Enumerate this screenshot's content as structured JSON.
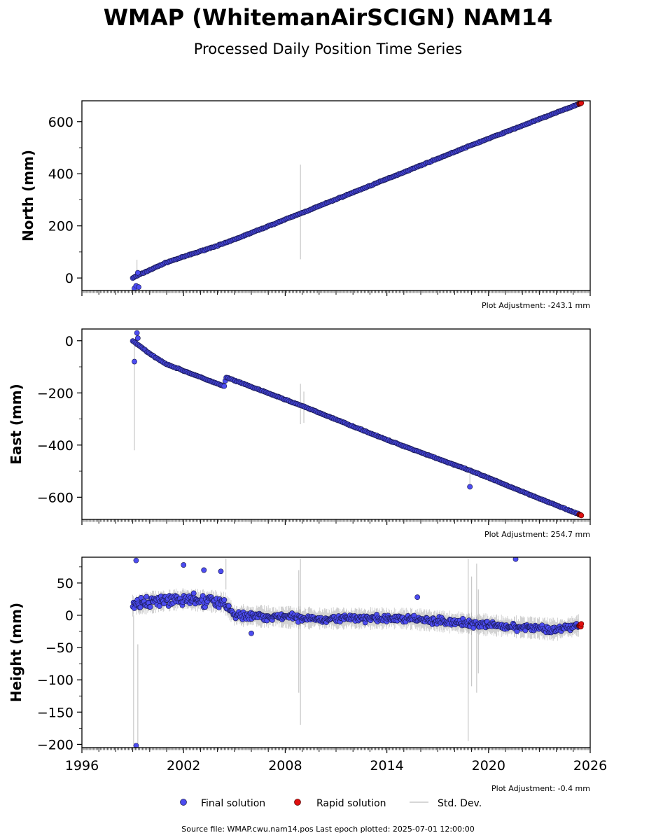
{
  "header": {
    "title": "WMAP (WhitemanAirSCIGN) NAM14",
    "subtitle": "Processed Daily Position Time Series"
  },
  "legend": {
    "final_label": "Final solution",
    "rapid_label": "Rapid solution",
    "std_label": "Std. Dev."
  },
  "footer": {
    "source": "Source file: WMAP.cwu.nam14.pos  Last epoch plotted: 2025-07-01 12:00:00"
  },
  "colors": {
    "final": "#4c4cf0",
    "rapid": "#e01010",
    "std_dev": "#c8c8c8"
  },
  "chart_data": [
    {
      "type": "scatter",
      "ylabel": "North (mm)",
      "adjustment": "Plot Adjustment: -243.1 mm",
      "xlim": [
        1996,
        2026
      ],
      "ylim": [
        -48,
        680
      ],
      "yticks": [
        0,
        200,
        400,
        600
      ],
      "xticks": [
        1996,
        2002,
        2008,
        2014,
        2020,
        2026
      ],
      "show_xtick_labels": false,
      "trend": [
        [
          1999.0,
          0
        ],
        [
          1999.3,
          10
        ],
        [
          2001.0,
          60
        ],
        [
          2004.5,
          135
        ],
        [
          2009.0,
          250
        ],
        [
          2014.0,
          380
        ],
        [
          2019.0,
          510
        ],
        [
          2025.5,
          672
        ]
      ],
      "outliers": [
        [
          1999.1,
          -40
        ],
        [
          1999.2,
          -30
        ],
        [
          1999.35,
          -35
        ],
        [
          1999.3,
          20
        ]
      ],
      "std_dev_spikes": [
        [
          1999.25,
          0,
          70
        ],
        [
          2008.9,
          72,
          435
        ]
      ],
      "series": [
        {
          "name": "Final solution",
          "x_start": 1999.0,
          "x_end": 2025.35
        },
        {
          "name": "Rapid solution",
          "x_start": 2025.35,
          "x_end": 2025.5
        }
      ]
    },
    {
      "type": "scatter",
      "ylabel": "East (mm)",
      "adjustment": "Plot Adjustment: 254.7 mm",
      "xlim": [
        1996,
        2026
      ],
      "ylim": [
        -685,
        45
      ],
      "yticks": [
        -600,
        -400,
        -200,
        0
      ],
      "xticks": [
        1996,
        2002,
        2008,
        2014,
        2020,
        2026
      ],
      "show_xtick_labels": false,
      "trend": [
        [
          1999.0,
          0
        ],
        [
          2000.0,
          -50
        ],
        [
          2001.0,
          -90
        ],
        [
          2004.4,
          -175
        ],
        [
          2004.5,
          -140
        ],
        [
          2009.0,
          -250
        ],
        [
          2014.0,
          -380
        ],
        [
          2019.0,
          -500
        ],
        [
          2025.5,
          -670
        ]
      ],
      "outliers": [
        [
          1999.1,
          -80
        ],
        [
          1999.25,
          30
        ],
        [
          1999.3,
          10
        ],
        [
          2018.9,
          -560
        ]
      ],
      "std_dev_spikes": [
        [
          1999.1,
          -420,
          0
        ],
        [
          2008.9,
          -320,
          -165
        ],
        [
          2009.1,
          -315,
          -195
        ],
        [
          2018.9,
          -550,
          -490
        ]
      ],
      "series": [
        {
          "name": "Final solution",
          "x_start": 1999.0,
          "x_end": 2025.35
        },
        {
          "name": "Rapid solution",
          "x_start": 2025.35,
          "x_end": 2025.5
        }
      ]
    },
    {
      "type": "scatter",
      "ylabel": "Height (mm)",
      "adjustment": "Plot Adjustment: -0.4 mm",
      "xlim": [
        1996,
        2026
      ],
      "ylim": [
        -205,
        90
      ],
      "yticks": [
        -200,
        -150,
        -100,
        -50,
        0,
        50
      ],
      "xticks": [
        1996,
        2002,
        2008,
        2014,
        2020,
        2026
      ],
      "show_xtick_labels": true,
      "trend": [
        [
          1999.0,
          15
        ],
        [
          2000.0,
          20
        ],
        [
          2002.0,
          25
        ],
        [
          2004.4,
          20
        ],
        [
          2005.0,
          0
        ],
        [
          2010.0,
          -5
        ],
        [
          2015.0,
          -5
        ],
        [
          2020.0,
          -15
        ],
        [
          2024.0,
          -22
        ],
        [
          2025.5,
          -15
        ]
      ],
      "outliers": [
        [
          1999.2,
          85
        ],
        [
          1999.2,
          -202
        ],
        [
          2002.0,
          78
        ],
        [
          2003.2,
          70
        ],
        [
          2004.2,
          68
        ],
        [
          2021.6,
          87
        ],
        [
          2015.8,
          28
        ],
        [
          2006.0,
          -28
        ]
      ],
      "std_dev_spikes": [
        [
          1999.05,
          -200,
          0
        ],
        [
          1999.3,
          -200,
          -45
        ],
        [
          2008.8,
          -120,
          70
        ],
        [
          2008.9,
          -170,
          88
        ],
        [
          2018.8,
          -195,
          88
        ],
        [
          2019.0,
          -110,
          60
        ],
        [
          2019.3,
          -120,
          80
        ],
        [
          2019.4,
          -90,
          40
        ],
        [
          2004.5,
          40,
          88
        ]
      ],
      "series": [
        {
          "name": "Final solution",
          "x_start": 1999.0,
          "x_end": 2025.35
        },
        {
          "name": "Rapid solution",
          "x_start": 2025.35,
          "x_end": 2025.5
        }
      ]
    }
  ]
}
